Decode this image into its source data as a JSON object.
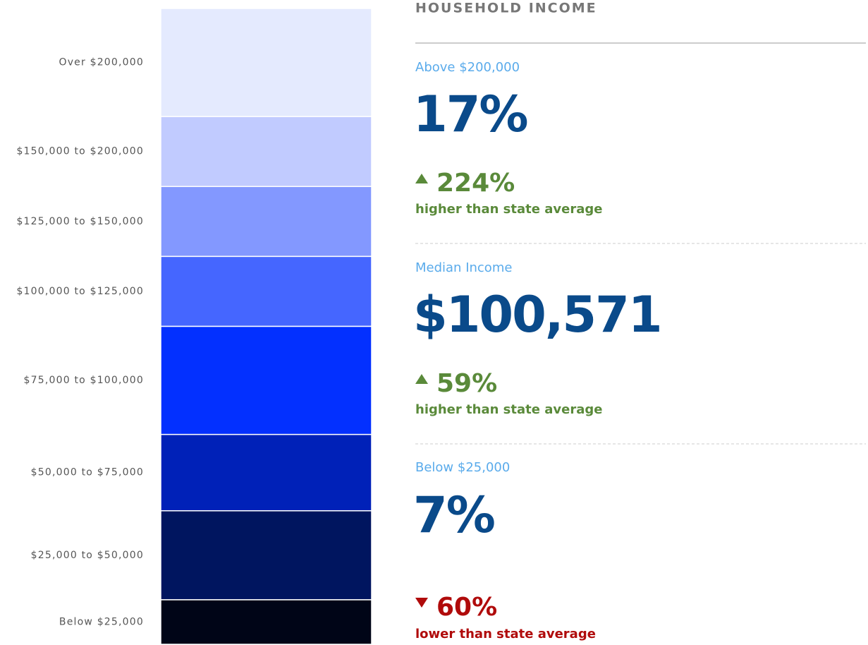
{
  "chart_data": {
    "type": "stacked-bar",
    "categories": [
      "Over $200,000",
      "$150,000 to $200,000",
      "$125,000 to $150,000",
      "$100,000 to $125,000",
      "$75,000 to $100,000",
      "$50,000 to $75,000",
      "$25,000 to $50,000",
      "Below $25,000"
    ],
    "values": [
      17,
      11,
      11,
      11,
      17,
      12,
      14,
      7
    ],
    "colors": [
      "#e4eafe",
      "#c1cbff",
      "#8398ff",
      "#4566ff",
      "#0330ff",
      "#0021b8",
      "#00155f",
      "#000517"
    ]
  },
  "panel": {
    "title": "HOUSEHOLD INCOME",
    "stats": [
      {
        "label": "Above $200,000",
        "value": "17%",
        "change": "224%",
        "direction": "up",
        "note": "higher than state average"
      },
      {
        "label": "Median Income",
        "value": "$100,571",
        "change": "59%",
        "direction": "up",
        "note": "higher than state average"
      },
      {
        "label": "Below $25,000",
        "value": "7%",
        "change": "60%",
        "direction": "down",
        "note": "lower than state average"
      }
    ]
  }
}
